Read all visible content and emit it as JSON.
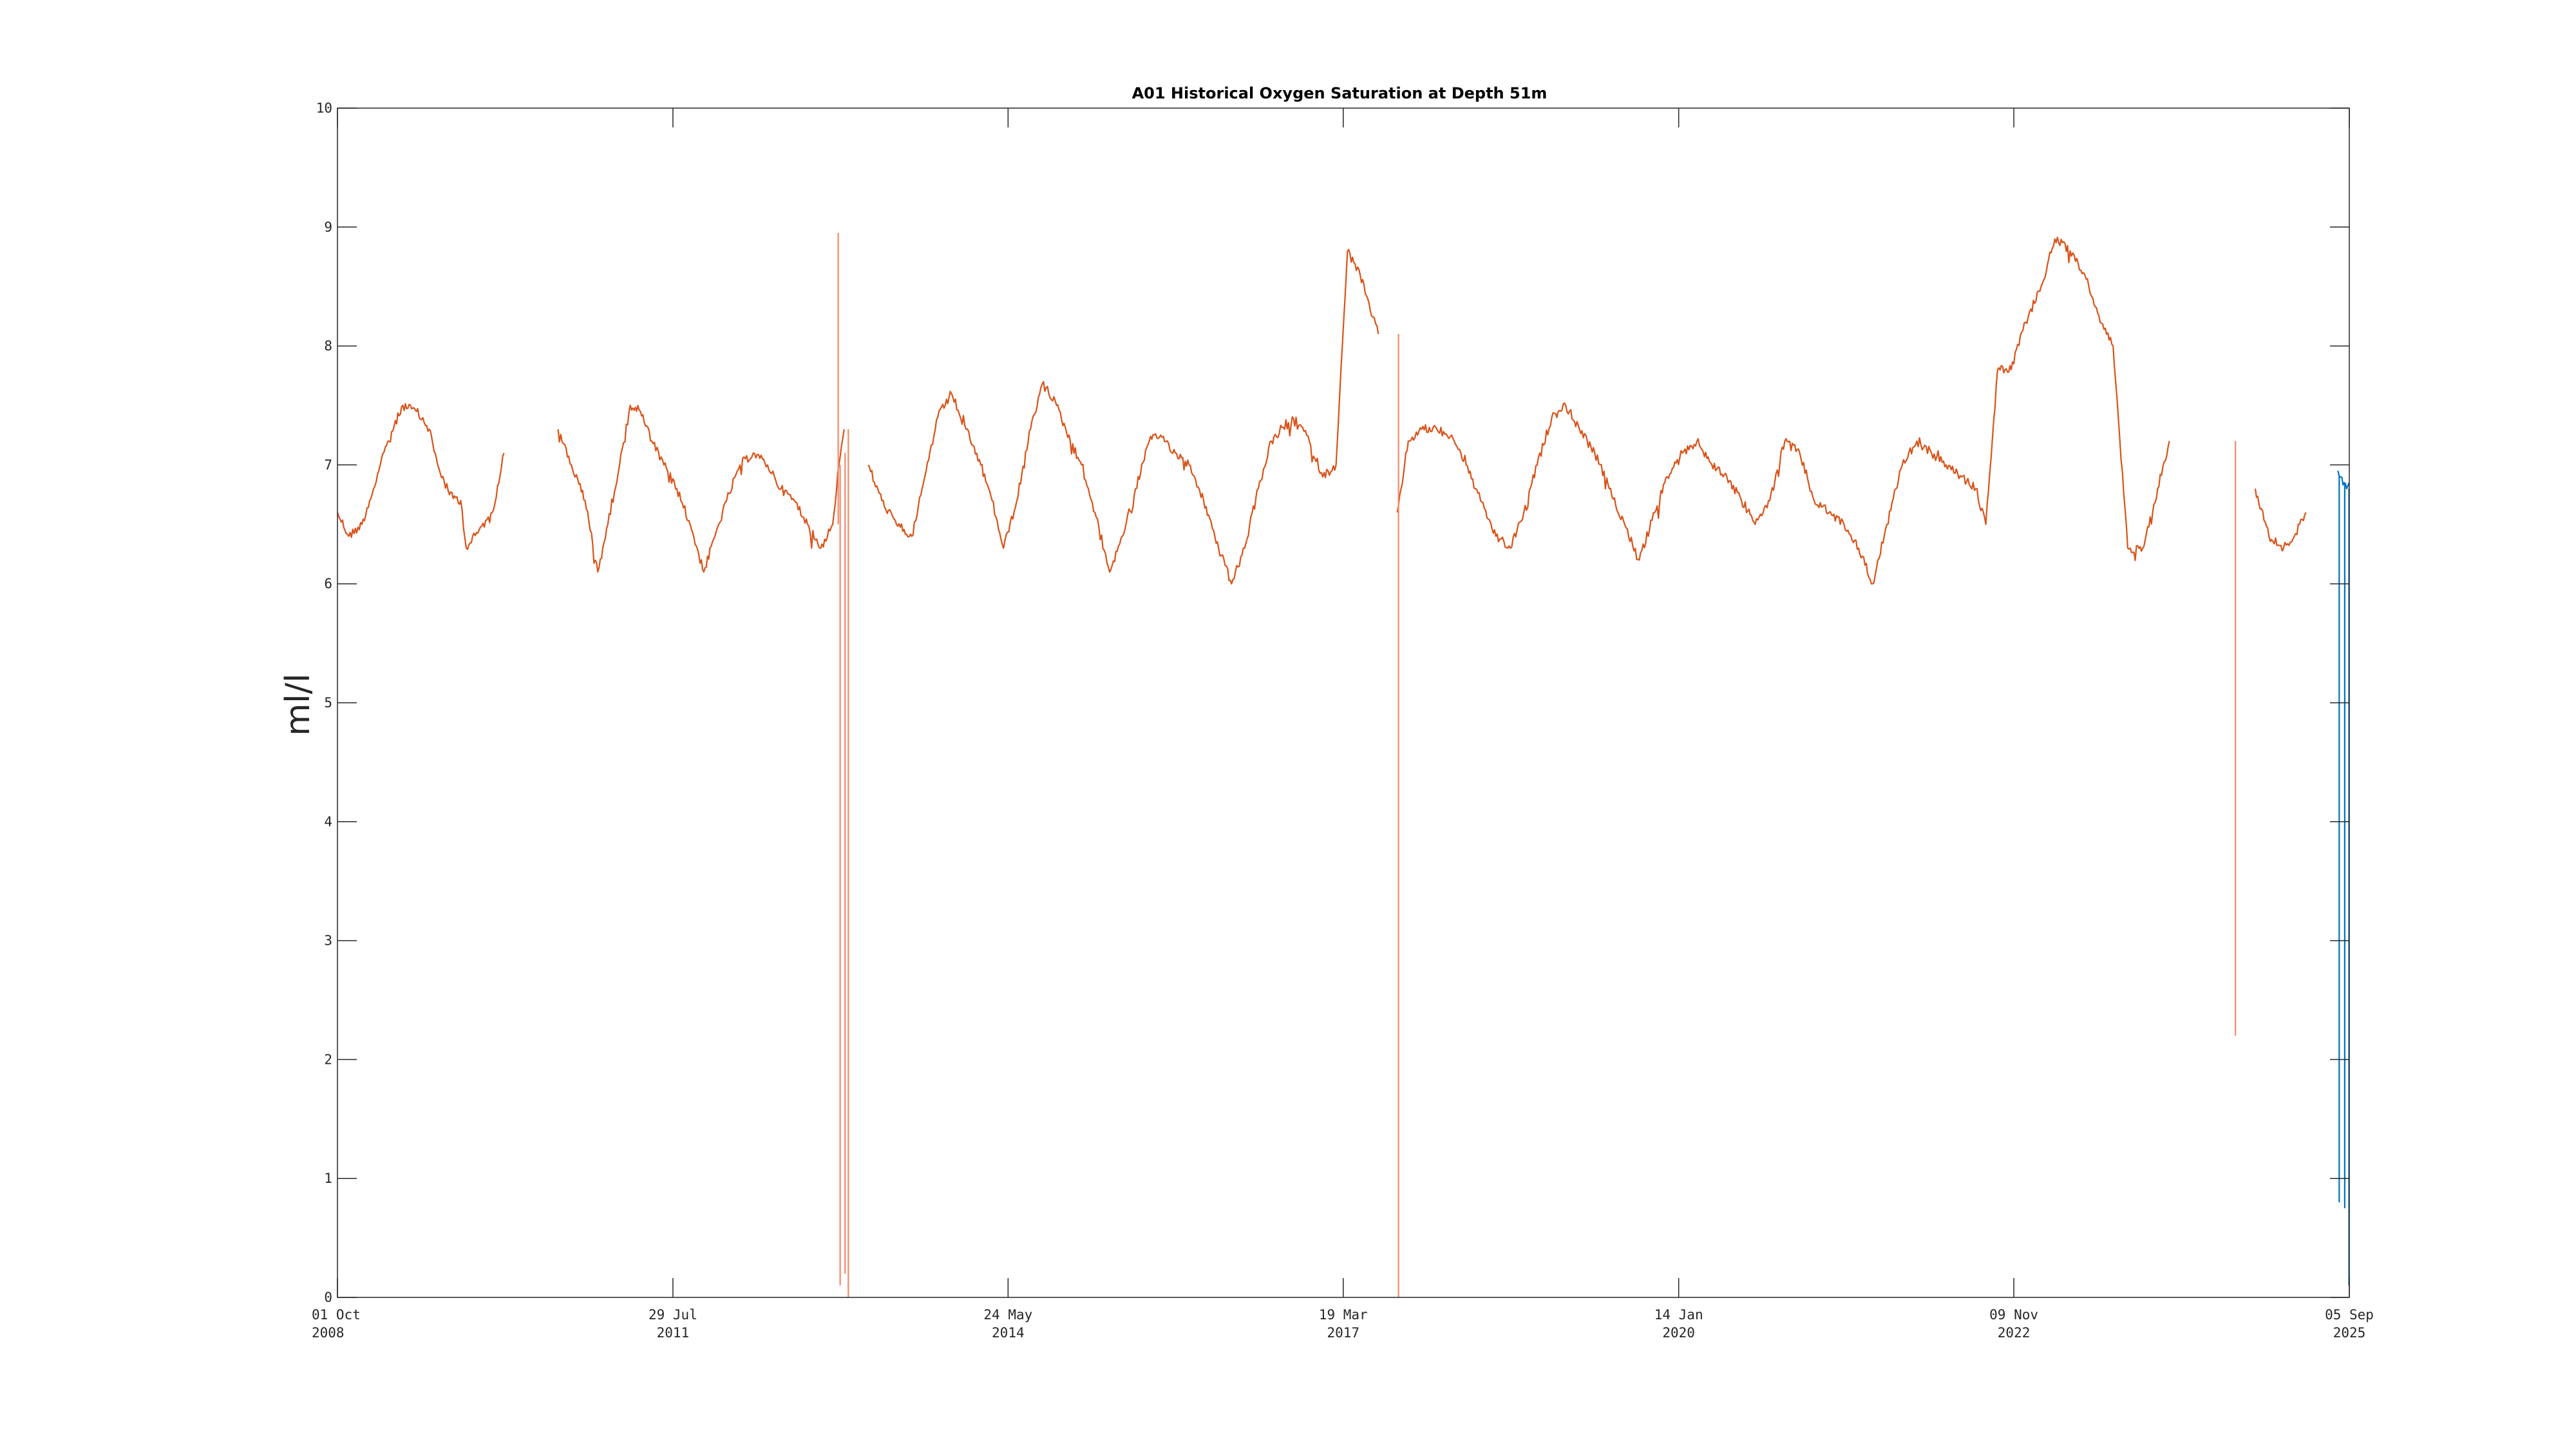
{
  "chart_data": {
    "type": "line",
    "title": "A01 Historical Oxygen Saturation at Depth 51m",
    "xlabel": "",
    "ylabel": "ml/l",
    "ylim": [
      0,
      10
    ],
    "xlim": [
      "2008-10-01",
      "2025-09-05"
    ],
    "yticks": [
      0,
      1,
      2,
      3,
      4,
      5,
      6,
      7,
      8,
      9,
      10
    ],
    "xticks": [
      {
        "date": "2008-10-01",
        "line1": "01 Oct",
        "line2": "2008"
      },
      {
        "date": "2011-07-29",
        "line1": "29 Jul",
        "line2": "2011"
      },
      {
        "date": "2014-05-24",
        "line1": "24 May",
        "line2": "2014"
      },
      {
        "date": "2017-03-19",
        "line1": "19 Mar",
        "line2": "2017"
      },
      {
        "date": "2020-01-14",
        "line1": "14 Jan",
        "line2": "2020"
      },
      {
        "date": "2022-11-09",
        "line1": "09 Nov",
        "line2": "2022"
      },
      {
        "date": "2025-09-05",
        "line1": "05 Sep",
        "line2": "2025"
      }
    ],
    "grid": false,
    "colors": {
      "historical": "#d95319",
      "recent": "#0072bd",
      "spike": "#f08a6a"
    },
    "series": [
      {
        "key": "historical",
        "segments": [
          {
            "x": [
              "2008-10-01",
              "2008-11-05",
              "2008-12-15",
              "2009-01-20",
              "2009-03-05",
              "2009-04-20",
              "2009-06-01",
              "2009-07-10",
              "2009-08-05",
              "2009-09-10",
              "2009-10-15",
              "2009-11-01",
              "2009-12-10",
              "2010-01-20",
              "2010-02-25"
            ],
            "y": [
              6.6,
              6.4,
              6.5,
              6.8,
              7.2,
              7.5,
              7.45,
              7.3,
              7.0,
              6.75,
              6.7,
              6.3,
              6.45,
              6.6,
              7.1
            ]
          },
          {
            "x": [
              "2010-08-10",
              "2010-09-20",
              "2010-11-01",
              "2010-12-10",
              "2011-01-10",
              "2011-02-15",
              "2011-03-20",
              "2011-04-20",
              "2011-05-25",
              "2011-07-01",
              "2011-08-10",
              "2011-09-20",
              "2011-11-01",
              "2011-12-05",
              "2012-01-10",
              "2012-02-20",
              "2012-04-01",
              "2012-05-15",
              "2012-06-25",
              "2012-08-05",
              "2012-09-15",
              "2012-10-25",
              "2012-12-01",
              "2012-12-20",
              "2013-01-05"
            ],
            "y": [
              7.3,
              7.0,
              6.7,
              6.1,
              6.5,
              7.0,
              7.5,
              7.45,
              7.2,
              7.0,
              6.8,
              6.5,
              6.1,
              6.4,
              6.7,
              7.0,
              7.1,
              7.0,
              6.8,
              6.7,
              6.5,
              6.3,
              6.5,
              7.0,
              7.3
            ]
          },
          {
            "x": [
              "2013-03-20",
              "2013-05-01",
              "2013-06-15",
              "2013-08-01",
              "2013-09-10",
              "2013-10-20",
              "2013-12-01",
              "2014-01-15",
              "2014-03-01",
              "2014-04-05",
              "2014-05-10",
              "2014-06-20",
              "2014-08-01",
              "2014-09-10",
              "2014-10-20",
              "2014-12-01",
              "2015-01-05",
              "2015-02-15",
              "2015-04-01",
              "2015-05-10",
              "2015-06-20",
              "2015-08-01",
              "2015-09-05",
              "2015-10-20",
              "2015-12-01",
              "2016-01-15",
              "2016-03-01",
              "2016-04-10",
              "2016-05-20",
              "2016-07-01",
              "2016-08-10",
              "2016-09-20",
              "2016-10-25",
              "2016-12-05",
              "2017-01-15",
              "2017-02-25",
              "2017-04-01",
              "2017-05-10",
              "2017-06-10",
              "2017-07-05"
            ],
            "y": [
              7.0,
              6.7,
              6.5,
              6.4,
              6.9,
              7.4,
              7.6,
              7.3,
              7.0,
              6.7,
              6.3,
              6.7,
              7.3,
              7.7,
              7.5,
              7.2,
              7.0,
              6.6,
              6.1,
              6.4,
              6.8,
              7.2,
              7.25,
              7.1,
              7.0,
              6.7,
              6.3,
              6.0,
              6.3,
              6.8,
              7.2,
              7.3,
              7.4,
              7.2,
              6.9,
              7.0,
              8.8,
              8.6,
              8.3,
              8.1
            ]
          },
          {
            "x": [
              "2017-09-01",
              "2017-10-05",
              "2017-11-15",
              "2018-01-01",
              "2018-02-15",
              "2018-04-01",
              "2018-05-15",
              "2018-07-01",
              "2018-08-15",
              "2018-09-25",
              "2018-11-05",
              "2018-12-20",
              "2019-02-01",
              "2019-03-15",
              "2019-05-01",
              "2019-06-15",
              "2019-08-01",
              "2019-09-15",
              "2019-11-01",
              "2019-12-10",
              "2020-01-25",
              "2020-03-10",
              "2020-04-25",
              "2020-06-10",
              "2020-07-25",
              "2020-09-05",
              "2020-10-20",
              "2020-12-05",
              "2021-01-20",
              "2021-03-05",
              "2021-04-20",
              "2021-06-05",
              "2021-07-20",
              "2021-09-01",
              "2021-10-15",
              "2021-12-01",
              "2022-01-15",
              "2022-03-01",
              "2022-04-15",
              "2022-06-01",
              "2022-07-15",
              "2022-08-15",
              "2022-09-20",
              "2022-11-01",
              "2022-12-15",
              "2023-02-01",
              "2023-03-15",
              "2023-05-01",
              "2023-06-15",
              "2023-07-10",
              "2023-08-01",
              "2023-09-10",
              "2023-10-25",
              "2023-12-10",
              "2024-01-25",
              "2024-03-01"
            ],
            "y": [
              6.6,
              7.2,
              7.3,
              7.3,
              7.25,
              7.0,
              6.7,
              6.4,
              6.3,
              6.6,
              7.0,
              7.4,
              7.5,
              7.3,
              7.1,
              6.8,
              6.5,
              6.2,
              6.6,
              6.9,
              7.1,
              7.2,
              7.0,
              6.9,
              6.7,
              6.5,
              6.7,
              7.2,
              7.1,
              6.7,
              6.6,
              6.5,
              6.3,
              6.0,
              6.5,
              7.0,
              7.2,
              7.1,
              7.0,
              6.9,
              6.8,
              6.5,
              7.8,
              7.8,
              8.2,
              8.5,
              8.9,
              8.8,
              8.6,
              8.4,
              8.2,
              8.0,
              6.3,
              6.3,
              6.8,
              7.2
            ]
          },
          {
            "x": [
              "2024-11-20",
              "2025-01-01",
              "2025-02-15",
              "2025-03-20",
              "2025-04-25"
            ],
            "y": [
              6.8,
              6.4,
              6.3,
              6.4,
              6.6
            ]
          }
        ],
        "spikes": [
          {
            "x": "2012-12-18",
            "y_from": 6.5,
            "y_to": 8.95
          },
          {
            "x": "2012-12-24",
            "y_from": 7.0,
            "y_to": 0.1
          },
          {
            "x": "2013-01-08",
            "y_from": 7.1,
            "y_to": 0.2
          },
          {
            "x": "2013-01-18",
            "y_from": 7.3,
            "y_to": 0.0
          },
          {
            "x": "2017-09-05",
            "y_from": 8.1,
            "y_to": 0.0
          },
          {
            "x": "2024-09-20",
            "y_from": 7.2,
            "y_to": 2.2
          }
        ]
      },
      {
        "key": "recent",
        "segments": [
          {
            "x": [
              "2025-08-01",
              "2025-08-10",
              "2025-08-20",
              "2025-08-28",
              "2025-09-04"
            ],
            "y": [
              6.95,
              6.9,
              6.85,
              6.8,
              6.85
            ]
          }
        ],
        "spikes": [
          {
            "x": "2025-08-05",
            "y_from": 6.9,
            "y_to": 0.8
          },
          {
            "x": "2025-08-22",
            "y_from": 6.85,
            "y_to": 0.75
          },
          {
            "x": "2025-09-04",
            "y_from": 6.8,
            "y_to": 0.1
          }
        ]
      }
    ]
  }
}
